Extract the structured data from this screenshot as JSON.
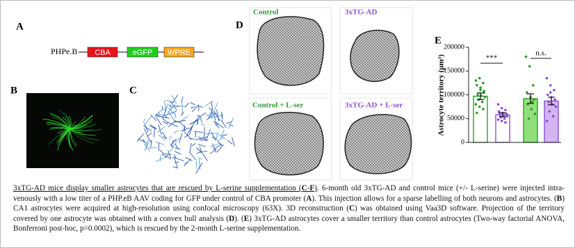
{
  "panel_labels": [
    "A",
    "B",
    "C",
    "D",
    "E"
  ],
  "construct": {
    "vector": "PHPe.B",
    "elements": [
      "CBA",
      "eGFP",
      "WPRE"
    ]
  },
  "projections": [
    "Control",
    "3xTG-AD",
    "Control + L-ser",
    "3xTG-AD + L-ser"
  ],
  "chart_data": {
    "type": "bar",
    "ylabel": "Astrocyte territory (µm³)",
    "categories": [
      null,
      null,
      null,
      null
    ],
    "values": [
      97000,
      58000,
      92000,
      87000
    ],
    "errors": [
      7000,
      4000,
      10000,
      8000
    ],
    "points": [
      [
        130000,
        135000,
        125000,
        120000,
        110000,
        105000,
        100000,
        98000,
        95000,
        90000,
        85000,
        80000,
        75000,
        70000,
        62000,
        115000,
        108000
      ],
      [
        80000,
        72000,
        68000,
        65000,
        62000,
        60000,
        58000,
        56000,
        55000,
        53000,
        50000,
        48000,
        45000,
        42000,
        63000
      ],
      [
        180000,
        160000,
        120000,
        105000,
        95000,
        90000,
        80000,
        70000,
        60000,
        50000,
        85000
      ],
      [
        135000,
        120000,
        110000,
        100000,
        95000,
        90000,
        85000,
        80000,
        75000,
        65000,
        55000,
        45000,
        105000
      ]
    ],
    "colors": [
      "#2e9a2e",
      "#8a4fd6",
      "#2e9a2e",
      "#8a4fd6"
    ],
    "fills": [
      "#ffffff",
      "#ffffff",
      "#8fe07a",
      "#d4b4f2"
    ],
    "ylim": [
      0,
      200000
    ],
    "yticks": [
      0,
      50000,
      100000,
      150000,
      200000
    ],
    "annotations": [
      "***",
      "n.s."
    ]
  },
  "caption": [
    {
      "text": "3xTG-AD mice display smaller astrocytes that are rescued by L-serine supplementation (",
      "style": "u"
    },
    {
      "text": "C-F",
      "style": "ub"
    },
    {
      "text": ")",
      "style": "u"
    },
    {
      "text": ". 6-month old 3xTG-AD and control mice (+/- L-serine) were injected intra-venously with a low titer of a PHP.eB AAV coding for GFP under control of CBA promoter ("
    },
    {
      "text": "A",
      "style": "b"
    },
    {
      "text": "). This injection allows for a sparse labelling of both neurons and astrocytes. ("
    },
    {
      "text": "B",
      "style": "b"
    },
    {
      "text": ") CA1 astrocytes were acquired at high-resolution using confocal microscopy (63X). 3D reconstruction ("
    },
    {
      "text": "C",
      "style": "b"
    },
    {
      "text": ") was obtained using Vaa3D software. Projection of the territory covered by one astrocyte was obtained with a convex hull analysis ("
    },
    {
      "text": "D",
      "style": "b"
    },
    {
      "text": "). ("
    },
    {
      "text": "E",
      "style": "b"
    },
    {
      "text": ") 3xTG-AD astrocytes cover a smaller territory than control astrocytes (Two-way factorial ANOVA, Bonferroni post-hoc, p=0.0002), which is rescued by the 2-month L-serine supplementation."
    }
  ]
}
